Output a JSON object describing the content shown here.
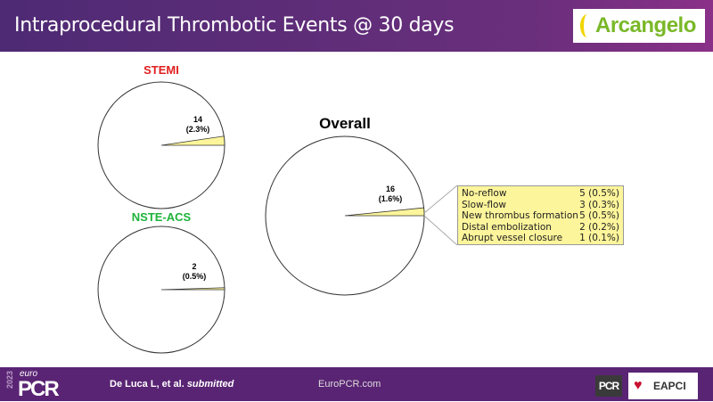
{
  "header": {
    "title": "Intraprocedural Thrombotic Events @ 30 days",
    "logo": "Arcangelo"
  },
  "chart_data": [
    {
      "type": "pie",
      "title": "STEMI",
      "title_color": "#e02020",
      "values": [
        2.3,
        97.7
      ],
      "slice_label": "14",
      "slice_pct": "(2.3%)",
      "colors": [
        "#fdf59b",
        "#ffffff"
      ]
    },
    {
      "type": "pie",
      "title": "NSTE-ACS",
      "title_color": "#1db33a",
      "values": [
        0.5,
        99.5
      ],
      "slice_label": "2",
      "slice_pct": "(0.5%)",
      "colors": [
        "#fdf59b",
        "#ffffff"
      ]
    },
    {
      "type": "pie",
      "title": "Overall",
      "title_color": "#000000",
      "values": [
        1.6,
        98.4
      ],
      "slice_label": "16",
      "slice_pct": "(1.6%)",
      "colors": [
        "#fdf59b",
        "#ffffff"
      ],
      "breakdown": [
        {
          "label": "No-reflow",
          "value": "5 (0.5%)"
        },
        {
          "label": "Slow-flow",
          "value": "3 (0.3%)"
        },
        {
          "label": "New thrombus formation",
          "value": "5 (0.5%)"
        },
        {
          "label": "Distal embolization",
          "value": "2 (0.2%)"
        },
        {
          "label": "Abrupt vessel closure",
          "value": "1 (0.1%)"
        }
      ]
    }
  ],
  "footer": {
    "year": "2023",
    "brand_small": "euro",
    "brand": "PCR",
    "citation": "De Luca L, et al.",
    "citation_em": "submitted",
    "site": "EuroPCR.com",
    "logo_pcr": "PCR",
    "logo_eapci": "EAPCI"
  }
}
